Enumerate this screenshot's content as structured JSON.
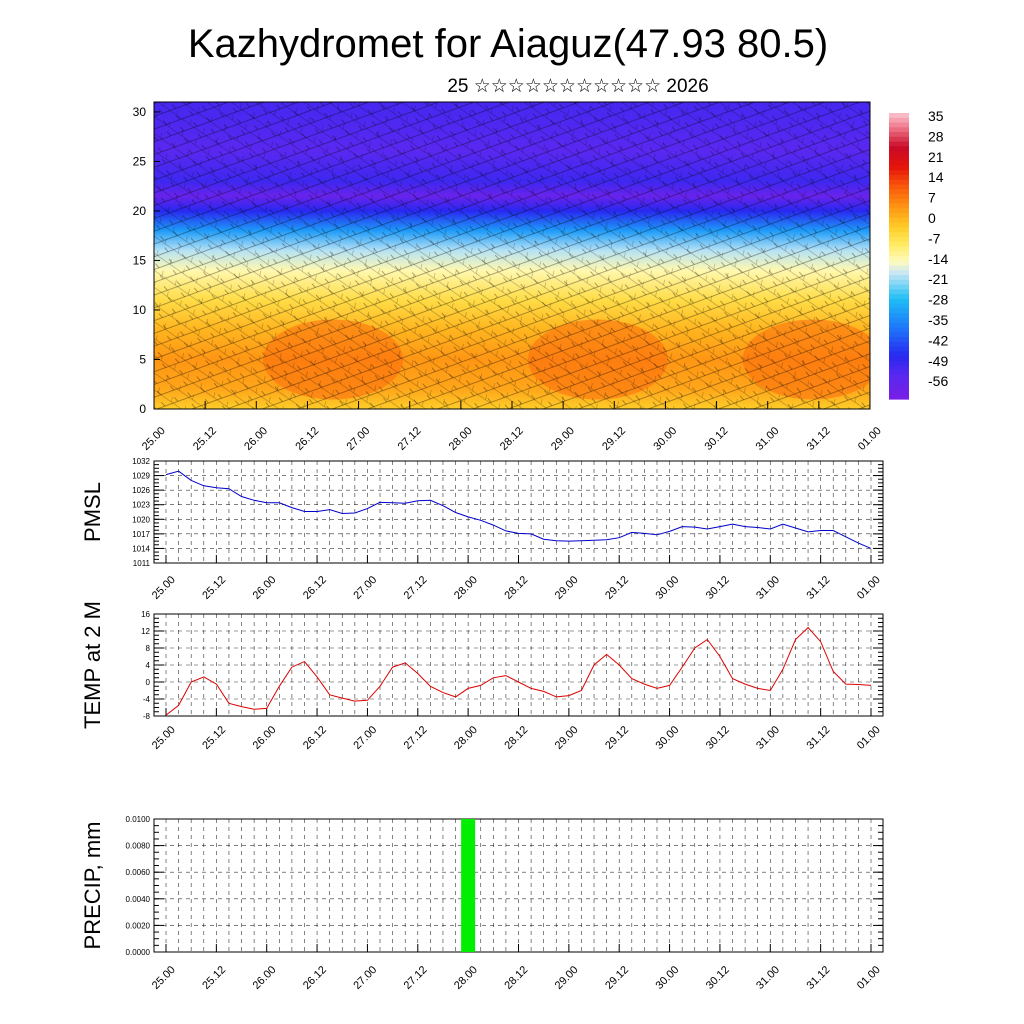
{
  "header": {
    "title": "Kazhydromet for Aiaguz(47.93 80.5)",
    "subtitle": "25 ☆☆☆☆☆☆☆☆☆☆☆ 2026"
  },
  "chart_data": [
    {
      "id": "cross-section",
      "type": "heatmap",
      "description_label": "time-height temperature cross section with wind barbs",
      "y_ticks": [
        "0",
        "5",
        "10",
        "15",
        "20",
        "25",
        "30"
      ],
      "ylim": [
        0,
        31
      ],
      "x_ticks": [
        "25.00",
        "25.12",
        "26.00",
        "26.12",
        "27.00",
        "27.12",
        "28.00",
        "28.12",
        "29.00",
        "29.12",
        "30.00",
        "30.12",
        "31.00",
        "31.12",
        "01.00"
      ],
      "colorbar_labels": [
        "35",
        "28",
        "21",
        "14",
        "7",
        "0",
        "-7",
        "-14",
        "-21",
        "-28",
        "-35",
        "-42",
        "-49",
        "-56"
      ],
      "colorbar_range": [
        -60,
        40
      ],
      "bands": [
        {
          "level": 0,
          "temp": 0
        },
        {
          "level": 2,
          "temp": 5
        },
        {
          "level": 5,
          "temp": 7
        },
        {
          "level": 8,
          "temp": 3
        },
        {
          "level": 11,
          "temp": -3
        },
        {
          "level": 14,
          "temp": -11
        },
        {
          "level": 16,
          "temp": -17
        },
        {
          "level": 18,
          "temp": -30
        },
        {
          "level": 20,
          "temp": -45
        },
        {
          "level": 21.5,
          "temp": -56
        },
        {
          "level": 23,
          "temp": -48
        },
        {
          "level": 26,
          "temp": -52
        },
        {
          "level": 31,
          "temp": -49
        }
      ]
    },
    {
      "id": "pmsl",
      "type": "line",
      "ylabel": "PMSL",
      "y_ticks": [
        "1032",
        "1029",
        "1026",
        "1023",
        "1020",
        "1017",
        "1014",
        "1011"
      ],
      "ylim": [
        1011,
        1032
      ],
      "x_ticks": [
        "25.00",
        "25.12",
        "26.00",
        "26.12",
        "27.00",
        "27.12",
        "28.00",
        "28.12",
        "29.00",
        "29.12",
        "30.00",
        "30.12",
        "31.00",
        "31.12",
        "01.00"
      ],
      "color": "#0000cc",
      "values": [
        1029.2,
        1029.9,
        1028.0,
        1026.9,
        1026.5,
        1026.3,
        1024.7,
        1023.9,
        1023.4,
        1023.4,
        1022.4,
        1021.6,
        1021.6,
        1022.0,
        1021.2,
        1021.3,
        1022.2,
        1023.5,
        1023.4,
        1023.3,
        1023.8,
        1023.9,
        1022.8,
        1021.4,
        1020.5,
        1019.8,
        1018.8,
        1017.6,
        1017.1,
        1017.0,
        1015.9,
        1015.6,
        1015.5,
        1015.6,
        1015.7,
        1015.8,
        1016.2,
        1017.3,
        1017.1,
        1016.8,
        1017.5,
        1018.5,
        1018.4,
        1018.0,
        1018.5,
        1019.0,
        1018.5,
        1018.3,
        1018.0,
        1019.0,
        1018.2,
        1017.4,
        1017.7,
        1017.7,
        1016.4,
        1015.1,
        1014.0
      ]
    },
    {
      "id": "temp2m",
      "type": "line",
      "ylabel": "TEMP at 2 M",
      "y_ticks": [
        "16",
        "12",
        "8",
        "4",
        "0",
        "-4",
        "-8"
      ],
      "ylim": [
        -8,
        16
      ],
      "x_ticks": [
        "25.00",
        "25.12",
        "26.00",
        "26.12",
        "27.00",
        "27.12",
        "28.00",
        "28.12",
        "29.00",
        "29.12",
        "30.00",
        "30.12",
        "31.00",
        "31.12",
        "01.00"
      ],
      "color": "#dd0000",
      "values": [
        -7.8,
        -5.5,
        0.0,
        1.2,
        -0.5,
        -5.0,
        -5.8,
        -6.4,
        -6.2,
        -1.0,
        3.5,
        4.8,
        1.2,
        -3.0,
        -3.8,
        -4.5,
        -4.3,
        -1.0,
        3.5,
        4.5,
        2.0,
        -1.0,
        -2.5,
        -3.5,
        -1.5,
        -0.8,
        1.0,
        1.5,
        0.0,
        -1.5,
        -2.2,
        -3.5,
        -3.2,
        -2.0,
        4.0,
        6.5,
        4.0,
        0.8,
        -0.5,
        -1.5,
        -0.8,
        3.5,
        8.0,
        10.0,
        6.0,
        0.8,
        -0.5,
        -1.5,
        -2.0,
        3.0,
        10.0,
        12.8,
        9.5,
        2.5,
        -0.5,
        -0.6,
        -0.8
      ]
    },
    {
      "id": "precip",
      "type": "bar",
      "ylabel": "PRECIP, mm",
      "y_ticks": [
        "0.0100",
        "0.0080",
        "0.0060",
        "0.0040",
        "0.0020",
        "0.0000"
      ],
      "ylim": [
        0,
        0.01
      ],
      "x_ticks": [
        "25.00",
        "25.12",
        "26.00",
        "26.12",
        "27.00",
        "27.12",
        "28.00",
        "28.12",
        "29.00",
        "29.12",
        "30.00",
        "30.12",
        "31.00",
        "31.12",
        "01.00"
      ],
      "color": "#00ee00",
      "bars": [
        {
          "x_index": 6.0,
          "value": 0.01
        }
      ]
    }
  ]
}
